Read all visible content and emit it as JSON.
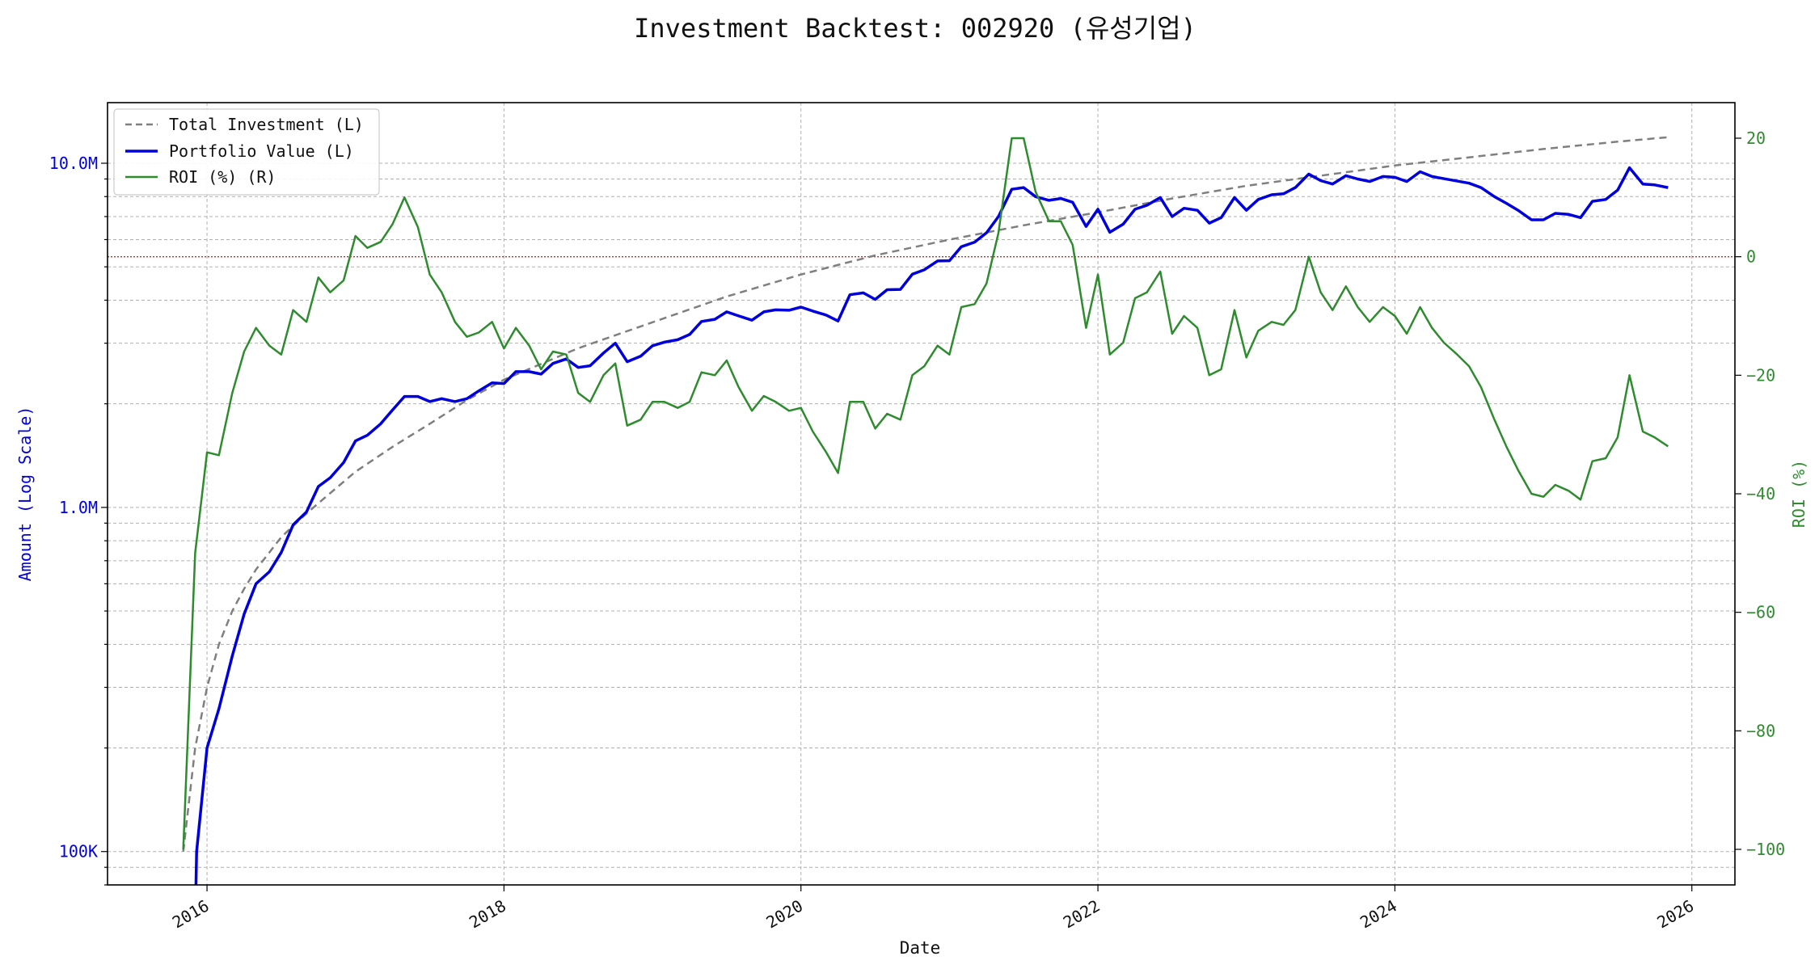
{
  "chart_data": {
    "type": "line",
    "title": "Investment Backtest: 002920 (유성기업)",
    "xlabel": "Date",
    "ylabel_left": "Amount (Log Scale)",
    "ylabel_right": "ROI (%)",
    "left_scale": "log",
    "left_ylim": [
      80000,
      15000000
    ],
    "right_ylim": [
      -106,
      26
    ],
    "xlim": [
      2015.33,
      2026.29
    ],
    "x_ticks": [
      2016,
      2018,
      2020,
      2022,
      2024,
      2026
    ],
    "x_tick_labels": [
      "2016",
      "2018",
      "2020",
      "2022",
      "2024",
      "2026"
    ],
    "left_ticks": [
      100000,
      1000000,
      10000000
    ],
    "left_tick_labels": [
      "100K",
      "1.0M",
      "10.0M"
    ],
    "right_ticks": [
      -100,
      -80,
      -60,
      -40,
      -20,
      0,
      20
    ],
    "right_tick_labels": [
      "−100",
      "−80",
      "−60",
      "−40",
      "−20",
      "0",
      "20"
    ],
    "grid": true,
    "legend_position": "top-left",
    "reference_line": {
      "axis": "right",
      "value": 0,
      "color": "#dd2222",
      "style": "dotted"
    },
    "colors": {
      "total_investment": "#7f7f7f",
      "portfolio_value": "#0000dd",
      "roi": "#2e8b2e",
      "left_axis": "#0000dd",
      "right_axis": "#2e8b2e"
    },
    "series": [
      {
        "name": "Total Investment (L)",
        "axis": "left",
        "style": "dashed",
        "points": [
          [
            2015.84,
            100000
          ],
          [
            2015.92,
            200000
          ],
          [
            2016.0,
            300000
          ],
          [
            2016.08,
            400000
          ],
          [
            2016.17,
            500000
          ],
          [
            2016.25,
            580000
          ],
          [
            2016.33,
            660000
          ],
          [
            2016.42,
            740000
          ],
          [
            2016.5,
            820000
          ],
          [
            2016.67,
            960000
          ],
          [
            2016.83,
            1100000
          ],
          [
            2017.0,
            1270000
          ],
          [
            2017.25,
            1500000
          ],
          [
            2017.5,
            1750000
          ],
          [
            2017.75,
            2050000
          ],
          [
            2018.0,
            2350000
          ],
          [
            2018.5,
            2900000
          ],
          [
            2019.0,
            3450000
          ],
          [
            2019.5,
            4100000
          ],
          [
            2020.0,
            4750000
          ],
          [
            2020.5,
            5400000
          ],
          [
            2021.0,
            6000000
          ],
          [
            2021.5,
            6600000
          ],
          [
            2022.0,
            7200000
          ],
          [
            2022.5,
            7900000
          ],
          [
            2023.0,
            8600000
          ],
          [
            2023.5,
            9200000
          ],
          [
            2024.0,
            9850000
          ],
          [
            2024.5,
            10400000
          ],
          [
            2025.0,
            11000000
          ],
          [
            2025.5,
            11550000
          ],
          [
            2025.84,
            11900000
          ]
        ]
      },
      {
        "name": "Portfolio Value (L)",
        "axis": "left",
        "style": "solid",
        "points": [
          [
            2015.92,
            60000
          ],
          [
            2015.93,
            100000
          ],
          [
            2016.0,
            200000
          ],
          [
            2016.08,
            260000
          ],
          [
            2016.17,
            370000
          ],
          [
            2016.25,
            490000
          ],
          [
            2016.33,
            600000
          ],
          [
            2016.42,
            650000
          ],
          [
            2016.5,
            740000
          ],
          [
            2016.58,
            890000
          ],
          [
            2016.67,
            970000
          ],
          [
            2016.75,
            1150000
          ],
          [
            2016.83,
            1220000
          ],
          [
            2016.92,
            1350000
          ],
          [
            2017.0,
            1560000
          ],
          [
            2017.08,
            1620000
          ],
          [
            2017.17,
            1750000
          ],
          [
            2017.25,
            1920000
          ],
          [
            2017.33,
            2100000
          ],
          [
            2017.42,
            2100000
          ],
          [
            2017.5,
            2030000
          ],
          [
            2017.58,
            2070000
          ],
          [
            2017.67,
            2030000
          ],
          [
            2017.75,
            2070000
          ],
          [
            2017.83,
            2180000
          ],
          [
            2017.92,
            2300000
          ],
          [
            2018.0,
            2290000
          ],
          [
            2018.08,
            2480000
          ],
          [
            2018.17,
            2480000
          ],
          [
            2018.25,
            2440000
          ],
          [
            2018.33,
            2620000
          ],
          [
            2018.42,
            2700000
          ],
          [
            2018.5,
            2550000
          ],
          [
            2018.58,
            2580000
          ],
          [
            2018.67,
            2810000
          ],
          [
            2018.75,
            3000000
          ],
          [
            2018.83,
            2650000
          ],
          [
            2018.92,
            2750000
          ],
          [
            2019.0,
            2950000
          ],
          [
            2019.08,
            3020000
          ],
          [
            2019.17,
            3070000
          ],
          [
            2019.25,
            3180000
          ],
          [
            2019.33,
            3470000
          ],
          [
            2019.42,
            3520000
          ],
          [
            2019.5,
            3700000
          ],
          [
            2019.58,
            3600000
          ],
          [
            2019.67,
            3500000
          ],
          [
            2019.75,
            3700000
          ],
          [
            2019.83,
            3750000
          ],
          [
            2019.92,
            3740000
          ],
          [
            2020.0,
            3820000
          ],
          [
            2020.08,
            3720000
          ],
          [
            2020.17,
            3620000
          ],
          [
            2020.25,
            3480000
          ],
          [
            2020.33,
            4150000
          ],
          [
            2020.42,
            4200000
          ],
          [
            2020.5,
            4020000
          ],
          [
            2020.58,
            4290000
          ],
          [
            2020.67,
            4300000
          ],
          [
            2020.75,
            4760000
          ],
          [
            2020.83,
            4900000
          ],
          [
            2020.92,
            5200000
          ],
          [
            2021.0,
            5210000
          ],
          [
            2021.08,
            5720000
          ],
          [
            2021.17,
            5900000
          ],
          [
            2021.25,
            6280000
          ],
          [
            2021.33,
            7000000
          ],
          [
            2021.42,
            8400000
          ],
          [
            2021.5,
            8500000
          ],
          [
            2021.58,
            8000000
          ],
          [
            2021.67,
            7800000
          ],
          [
            2021.75,
            7900000
          ],
          [
            2021.83,
            7700000
          ],
          [
            2021.92,
            6550000
          ],
          [
            2022.0,
            7350000
          ],
          [
            2022.08,
            6300000
          ],
          [
            2022.17,
            6650000
          ],
          [
            2022.25,
            7350000
          ],
          [
            2022.33,
            7550000
          ],
          [
            2022.42,
            7950000
          ],
          [
            2022.5,
            7000000
          ],
          [
            2022.58,
            7400000
          ],
          [
            2022.67,
            7300000
          ],
          [
            2022.75,
            6700000
          ],
          [
            2022.83,
            6950000
          ],
          [
            2022.92,
            7950000
          ],
          [
            2023.0,
            7300000
          ],
          [
            2023.08,
            7850000
          ],
          [
            2023.17,
            8100000
          ],
          [
            2023.25,
            8150000
          ],
          [
            2023.33,
            8500000
          ],
          [
            2023.42,
            9300000
          ],
          [
            2023.5,
            8900000
          ],
          [
            2023.58,
            8700000
          ],
          [
            2023.67,
            9200000
          ],
          [
            2023.75,
            9000000
          ],
          [
            2023.83,
            8850000
          ],
          [
            2023.92,
            9150000
          ],
          [
            2024.0,
            9100000
          ],
          [
            2024.08,
            8850000
          ],
          [
            2024.17,
            9450000
          ],
          [
            2024.25,
            9150000
          ],
          [
            2024.5,
            8750000
          ],
          [
            2024.58,
            8500000
          ],
          [
            2024.67,
            8000000
          ],
          [
            2024.75,
            7650000
          ],
          [
            2024.83,
            7300000
          ],
          [
            2024.92,
            6850000
          ],
          [
            2025.0,
            6850000
          ],
          [
            2025.08,
            7150000
          ],
          [
            2025.17,
            7100000
          ],
          [
            2025.25,
            6950000
          ],
          [
            2025.33,
            7750000
          ],
          [
            2025.42,
            7850000
          ],
          [
            2025.5,
            8350000
          ],
          [
            2025.58,
            9700000
          ],
          [
            2025.67,
            8700000
          ],
          [
            2025.75,
            8650000
          ],
          [
            2025.84,
            8500000
          ]
        ]
      },
      {
        "name": "ROI (%) (R)",
        "axis": "right",
        "style": "solid",
        "points": [
          [
            2015.84,
            -100
          ],
          [
            2015.92,
            -50
          ],
          [
            2016.0,
            -33
          ],
          [
            2016.08,
            -33.5
          ],
          [
            2016.17,
            -23
          ],
          [
            2016.25,
            -16
          ],
          [
            2016.33,
            -12
          ],
          [
            2016.42,
            -15
          ],
          [
            2016.5,
            -16.5
          ],
          [
            2016.58,
            -9
          ],
          [
            2016.67,
            -11
          ],
          [
            2016.75,
            -3.5
          ],
          [
            2016.83,
            -6
          ],
          [
            2016.92,
            -4
          ],
          [
            2017.0,
            3.5
          ],
          [
            2017.08,
            1.5
          ],
          [
            2017.17,
            2.5
          ],
          [
            2017.25,
            5.5
          ],
          [
            2017.33,
            10
          ],
          [
            2017.42,
            5
          ],
          [
            2017.5,
            -3
          ],
          [
            2017.58,
            -6
          ],
          [
            2017.67,
            -11
          ],
          [
            2017.75,
            -13.5
          ],
          [
            2017.83,
            -12.8
          ],
          [
            2017.92,
            -11
          ],
          [
            2018.0,
            -15.5
          ],
          [
            2018.08,
            -12
          ],
          [
            2018.17,
            -15
          ],
          [
            2018.25,
            -19
          ],
          [
            2018.33,
            -16
          ],
          [
            2018.42,
            -16.5
          ],
          [
            2018.5,
            -23
          ],
          [
            2018.58,
            -24.5
          ],
          [
            2018.67,
            -20
          ],
          [
            2018.75,
            -18
          ],
          [
            2018.83,
            -28.5
          ],
          [
            2018.92,
            -27.5
          ],
          [
            2019.0,
            -24.5
          ],
          [
            2019.08,
            -24.5
          ],
          [
            2019.17,
            -25.5
          ],
          [
            2019.25,
            -24.5
          ],
          [
            2019.33,
            -19.5
          ],
          [
            2019.42,
            -20
          ],
          [
            2019.5,
            -17.5
          ],
          [
            2019.58,
            -22
          ],
          [
            2019.67,
            -26
          ],
          [
            2019.75,
            -23.5
          ],
          [
            2019.83,
            -24.5
          ],
          [
            2019.92,
            -26
          ],
          [
            2020.0,
            -25.5
          ],
          [
            2020.08,
            -29.5
          ],
          [
            2020.17,
            -33
          ],
          [
            2020.25,
            -36.5
          ],
          [
            2020.33,
            -24.5
          ],
          [
            2020.42,
            -24.5
          ],
          [
            2020.5,
            -29
          ],
          [
            2020.58,
            -26.5
          ],
          [
            2020.67,
            -27.5
          ],
          [
            2020.75,
            -20
          ],
          [
            2020.83,
            -18.5
          ],
          [
            2020.92,
            -15
          ],
          [
            2021.0,
            -16.5
          ],
          [
            2021.08,
            -8.5
          ],
          [
            2021.17,
            -8
          ],
          [
            2021.25,
            -4.5
          ],
          [
            2021.33,
            4
          ],
          [
            2021.42,
            20
          ],
          [
            2021.5,
            20
          ],
          [
            2021.58,
            11
          ],
          [
            2021.67,
            6
          ],
          [
            2021.75,
            6
          ],
          [
            2021.83,
            2
          ],
          [
            2021.92,
            -12
          ],
          [
            2022.0,
            -3
          ],
          [
            2022.08,
            -16.5
          ],
          [
            2022.17,
            -14.5
          ],
          [
            2022.25,
            -7
          ],
          [
            2022.33,
            -6
          ],
          [
            2022.42,
            -2.5
          ],
          [
            2022.5,
            -13
          ],
          [
            2022.58,
            -10
          ],
          [
            2022.67,
            -12
          ],
          [
            2022.75,
            -20
          ],
          [
            2022.83,
            -19
          ],
          [
            2022.92,
            -9
          ],
          [
            2023.0,
            -17
          ],
          [
            2023.08,
            -12.5
          ],
          [
            2023.17,
            -11
          ],
          [
            2023.25,
            -11.5
          ],
          [
            2023.33,
            -9
          ],
          [
            2023.42,
            0
          ],
          [
            2023.5,
            -6
          ],
          [
            2023.58,
            -9
          ],
          [
            2023.67,
            -5
          ],
          [
            2023.75,
            -8.5
          ],
          [
            2023.83,
            -11
          ],
          [
            2023.92,
            -8.5
          ],
          [
            2024.0,
            -10
          ],
          [
            2024.08,
            -13
          ],
          [
            2024.17,
            -8.5
          ],
          [
            2024.25,
            -12
          ],
          [
            2024.33,
            -14.5
          ],
          [
            2024.42,
            -16.5
          ],
          [
            2024.5,
            -18.5
          ],
          [
            2024.58,
            -22
          ],
          [
            2024.67,
            -27.5
          ],
          [
            2024.75,
            -32
          ],
          [
            2024.83,
            -36
          ],
          [
            2024.92,
            -40
          ],
          [
            2025.0,
            -40.5
          ],
          [
            2025.08,
            -38.5
          ],
          [
            2025.17,
            -39.5
          ],
          [
            2025.25,
            -41
          ],
          [
            2025.33,
            -34.5
          ],
          [
            2025.42,
            -34
          ],
          [
            2025.5,
            -30.5
          ],
          [
            2025.58,
            -20
          ],
          [
            2025.67,
            -29.5
          ],
          [
            2025.75,
            -30.5
          ],
          [
            2025.84,
            -32
          ]
        ]
      }
    ]
  }
}
